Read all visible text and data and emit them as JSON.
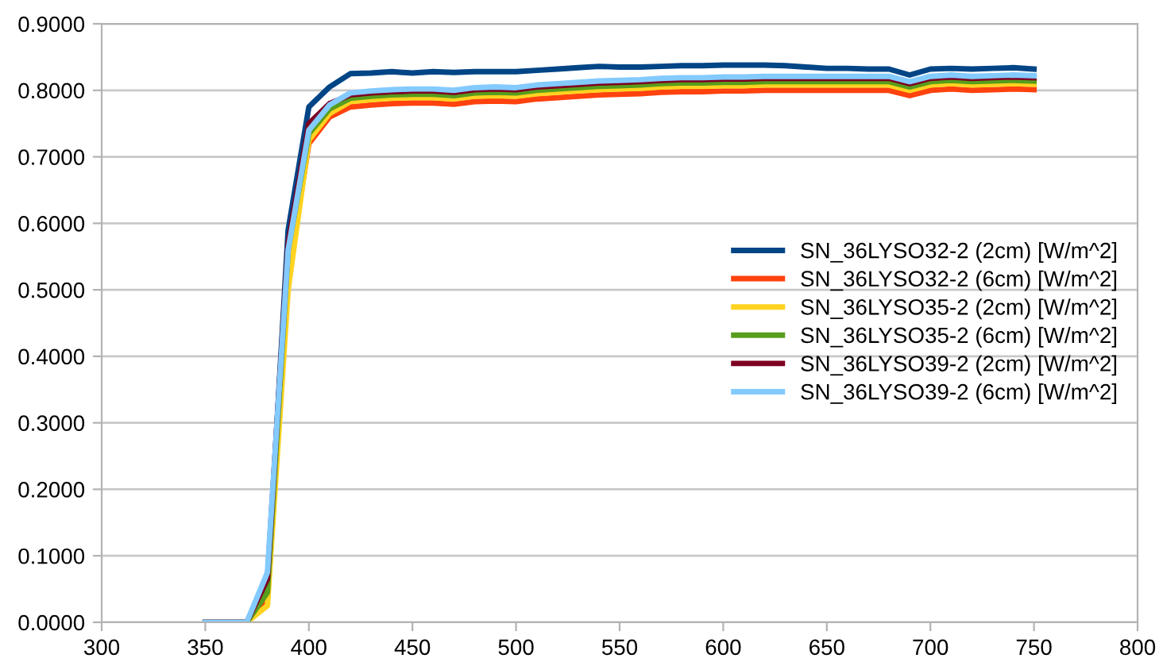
{
  "chart_data": {
    "type": "line",
    "x": [
      350,
      360,
      370,
      380,
      390,
      400,
      410,
      420,
      430,
      440,
      450,
      460,
      470,
      480,
      490,
      500,
      510,
      520,
      530,
      540,
      550,
      560,
      570,
      580,
      590,
      600,
      610,
      620,
      630,
      640,
      650,
      660,
      670,
      680,
      690,
      700,
      710,
      720,
      730,
      740,
      750
    ],
    "series": [
      {
        "name": "SN_36LYSO32-2 (2cm) [W/m^2]",
        "color": "#004586",
        "values": [
          0,
          0,
          0,
          0.05,
          0.59,
          0.775,
          0.805,
          0.825,
          0.826,
          0.828,
          0.826,
          0.828,
          0.827,
          0.828,
          0.828,
          0.828,
          0.83,
          0.832,
          0.834,
          0.836,
          0.835,
          0.835,
          0.836,
          0.837,
          0.837,
          0.838,
          0.838,
          0.838,
          0.837,
          0.835,
          0.833,
          0.833,
          0.832,
          0.832,
          0.823,
          0.832,
          0.833,
          0.832,
          0.833,
          0.834,
          0.832
        ]
      },
      {
        "name": "SN_36LYSO32-2 (6cm) [W/m^2]",
        "color": "#ff420e",
        "values": [
          0,
          0,
          0,
          0.035,
          0.52,
          0.72,
          0.76,
          0.775,
          0.778,
          0.78,
          0.781,
          0.781,
          0.779,
          0.783,
          0.784,
          0.783,
          0.787,
          0.789,
          0.791,
          0.793,
          0.794,
          0.795,
          0.797,
          0.798,
          0.798,
          0.799,
          0.799,
          0.8,
          0.8,
          0.8,
          0.8,
          0.8,
          0.8,
          0.8,
          0.792,
          0.8,
          0.802,
          0.8,
          0.801,
          0.802,
          0.801
        ]
      },
      {
        "name": "SN_36LYSO35-2 (2cm) [W/m^2]",
        "color": "#ffd320",
        "values": [
          0,
          0,
          0,
          0.025,
          0.5,
          0.725,
          0.765,
          0.783,
          0.786,
          0.788,
          0.789,
          0.789,
          0.787,
          0.791,
          0.792,
          0.791,
          0.795,
          0.797,
          0.799,
          0.801,
          0.802,
          0.803,
          0.805,
          0.806,
          0.806,
          0.807,
          0.807,
          0.808,
          0.808,
          0.808,
          0.808,
          0.808,
          0.808,
          0.808,
          0.8,
          0.808,
          0.81,
          0.808,
          0.809,
          0.81,
          0.809
        ]
      },
      {
        "name": "SN_36LYSO35-2 (6cm) [W/m^2]",
        "color": "#579d1c",
        "values": [
          0,
          0,
          0,
          0.045,
          0.56,
          0.735,
          0.772,
          0.788,
          0.791,
          0.793,
          0.794,
          0.794,
          0.792,
          0.796,
          0.797,
          0.796,
          0.8,
          0.802,
          0.804,
          0.806,
          0.807,
          0.808,
          0.81,
          0.811,
          0.811,
          0.812,
          0.812,
          0.813,
          0.813,
          0.813,
          0.813,
          0.813,
          0.813,
          0.813,
          0.805,
          0.813,
          0.815,
          0.813,
          0.814,
          0.815,
          0.814
        ]
      },
      {
        "name": "SN_36LYSO39-2 (2cm) [W/m^2]",
        "color": "#7e0021",
        "values": [
          0,
          0,
          0,
          0.065,
          0.57,
          0.75,
          0.78,
          0.793,
          0.796,
          0.798,
          0.799,
          0.799,
          0.797,
          0.801,
          0.802,
          0.801,
          0.805,
          0.807,
          0.809,
          0.811,
          0.812,
          0.813,
          0.815,
          0.816,
          0.816,
          0.817,
          0.817,
          0.818,
          0.818,
          0.818,
          0.818,
          0.818,
          0.818,
          0.818,
          0.81,
          0.818,
          0.82,
          0.818,
          0.819,
          0.82,
          0.819
        ]
      },
      {
        "name": "SN_36LYSO39-2 (6cm) [W/m^2]",
        "color": "#83caff",
        "values": [
          0,
          0,
          0,
          0.075,
          0.56,
          0.74,
          0.778,
          0.796,
          0.799,
          0.801,
          0.802,
          0.802,
          0.8,
          0.804,
          0.805,
          0.804,
          0.808,
          0.81,
          0.812,
          0.814,
          0.815,
          0.816,
          0.818,
          0.819,
          0.819,
          0.82,
          0.82,
          0.821,
          0.821,
          0.821,
          0.821,
          0.821,
          0.821,
          0.821,
          0.813,
          0.821,
          0.823,
          0.821,
          0.822,
          0.823,
          0.822
        ]
      }
    ],
    "xlim": [
      300,
      800
    ],
    "xticks": [
      300,
      350,
      400,
      450,
      500,
      550,
      600,
      650,
      700,
      750,
      800
    ],
    "ylim": [
      0,
      0.9
    ],
    "yticks": [
      {
        "value": 0,
        "label": "0.0000"
      },
      {
        "value": 0.1,
        "label": "0.1000"
      },
      {
        "value": 0.2,
        "label": "0.2000"
      },
      {
        "value": 0.3,
        "label": "0.3000"
      },
      {
        "value": 0.4,
        "label": "0.4000"
      },
      {
        "value": 0.5,
        "label": "0.5000"
      },
      {
        "value": 0.6,
        "label": "0.6000"
      },
      {
        "value": 0.7,
        "label": "0.7000"
      },
      {
        "value": 0.8,
        "label": "0.8000"
      },
      {
        "value": 0.9,
        "label": "0.9000"
      }
    ],
    "grid": "y",
    "legend": "center right",
    "marker": "none",
    "line_style": "solid"
  }
}
